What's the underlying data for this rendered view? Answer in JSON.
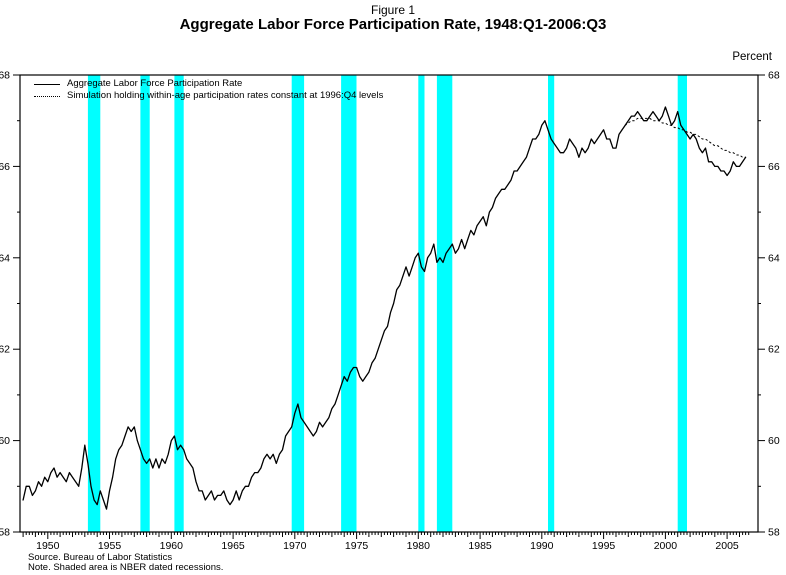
{
  "figure_label": "Figure 1",
  "title": "Aggregate Labor Force Participation Rate, 1948:Q1-2006:Q3",
  "right_axis_label": "Percent",
  "footnotes": {
    "source": "Source. Bureau of Labor Statistics",
    "note": "Note. Shaded area is NBER dated recessions."
  },
  "chart_data": {
    "type": "line",
    "title": "Aggregate Labor Force Participation Rate, 1948:Q1-2006:Q3",
    "xlabel": "",
    "ylabel": "Percent",
    "ylim": [
      58,
      68
    ],
    "yticks": [
      58,
      60,
      62,
      64,
      66,
      68
    ],
    "xlim": [
      1947.75,
      2007.5
    ],
    "xticks": [
      1950,
      1955,
      1960,
      1965,
      1970,
      1975,
      1980,
      1985,
      1990,
      1995,
      2000,
      2005
    ],
    "x_minor_tick_step": 0.25,
    "grid": false,
    "legend_position": "top-left",
    "recession_color": "#00FFFF",
    "line_color": "#000000",
    "recessions": [
      [
        1953.25,
        1954.25
      ],
      [
        1957.5,
        1958.25
      ],
      [
        1960.25,
        1961.0
      ],
      [
        1969.75,
        1970.75
      ],
      [
        1973.75,
        1975.0
      ],
      [
        1980.0,
        1980.5
      ],
      [
        1981.5,
        1982.75
      ],
      [
        1990.5,
        1991.0
      ],
      [
        2001.0,
        2001.75
      ]
    ],
    "series": [
      {
        "name": "Aggregate Labor Force Participation Rate",
        "style": "solid",
        "x_start": 1948.0,
        "x_step": 0.25,
        "values": [
          58.7,
          59.0,
          59.0,
          58.8,
          58.9,
          59.1,
          59.0,
          59.2,
          59.1,
          59.3,
          59.4,
          59.2,
          59.3,
          59.2,
          59.1,
          59.3,
          59.2,
          59.1,
          59.0,
          59.4,
          59.9,
          59.5,
          59.0,
          58.7,
          58.6,
          58.9,
          58.7,
          58.5,
          58.9,
          59.2,
          59.6,
          59.8,
          59.9,
          60.1,
          60.3,
          60.2,
          60.3,
          60.0,
          59.8,
          59.6,
          59.5,
          59.6,
          59.4,
          59.6,
          59.4,
          59.6,
          59.5,
          59.7,
          60.0,
          60.1,
          59.8,
          59.9,
          59.8,
          59.6,
          59.5,
          59.4,
          59.1,
          58.9,
          58.9,
          58.7,
          58.8,
          58.9,
          58.7,
          58.8,
          58.8,
          58.9,
          58.7,
          58.6,
          58.7,
          58.9,
          58.7,
          58.9,
          59.0,
          59.0,
          59.2,
          59.3,
          59.3,
          59.4,
          59.6,
          59.7,
          59.6,
          59.7,
          59.5,
          59.7,
          59.8,
          60.1,
          60.2,
          60.3,
          60.6,
          60.8,
          60.5,
          60.4,
          60.3,
          60.2,
          60.1,
          60.2,
          60.4,
          60.3,
          60.4,
          60.5,
          60.7,
          60.8,
          61.0,
          61.2,
          61.4,
          61.3,
          61.5,
          61.6,
          61.6,
          61.4,
          61.3,
          61.4,
          61.5,
          61.7,
          61.8,
          62.0,
          62.2,
          62.4,
          62.5,
          62.8,
          63.0,
          63.3,
          63.4,
          63.6,
          63.8,
          63.6,
          63.8,
          64.0,
          64.1,
          63.8,
          63.7,
          64.0,
          64.1,
          64.3,
          63.9,
          64.0,
          63.9,
          64.1,
          64.2,
          64.3,
          64.1,
          64.2,
          64.4,
          64.2,
          64.4,
          64.6,
          64.5,
          64.7,
          64.8,
          64.9,
          64.7,
          65.0,
          65.1,
          65.3,
          65.4,
          65.5,
          65.5,
          65.6,
          65.7,
          65.9,
          65.9,
          66.0,
          66.1,
          66.2,
          66.4,
          66.6,
          66.6,
          66.7,
          66.9,
          67.0,
          66.8,
          66.6,
          66.5,
          66.4,
          66.3,
          66.3,
          66.4,
          66.6,
          66.5,
          66.4,
          66.2,
          66.4,
          66.3,
          66.4,
          66.6,
          66.5,
          66.6,
          66.7,
          66.8,
          66.6,
          66.6,
          66.4,
          66.4,
          66.7,
          66.8,
          66.9,
          67.0,
          67.1,
          67.1,
          67.2,
          67.1,
          67.0,
          67.0,
          67.1,
          67.2,
          67.1,
          67.0,
          67.1,
          67.3,
          67.1,
          66.9,
          67.0,
          67.2,
          66.9,
          66.8,
          66.7,
          66.6,
          66.7,
          66.6,
          66.4,
          66.3,
          66.4,
          66.1,
          66.1,
          66.0,
          66.0,
          65.9,
          65.9,
          65.8,
          65.9,
          66.1,
          66.0,
          66.0,
          66.1,
          66.2
        ]
      },
      {
        "name": "Simulation holding within-age participation rates constant at 1996:Q4 levels",
        "style": "dotted",
        "x_start": 1996.75,
        "x_step": 0.25,
        "values": [
          66.9,
          66.95,
          67.0,
          67.0,
          67.05,
          67.05,
          67.05,
          67.05,
          67.05,
          67.0,
          67.0,
          67.0,
          66.95,
          66.95,
          66.9,
          66.9,
          66.85,
          66.85,
          66.8,
          66.8,
          66.75,
          66.75,
          66.7,
          66.7,
          66.65,
          66.6,
          66.6,
          66.55,
          66.5,
          66.45,
          66.45,
          66.4,
          66.35,
          66.35,
          66.3,
          66.3,
          66.25,
          66.25,
          66.2,
          66.2
        ]
      }
    ]
  }
}
